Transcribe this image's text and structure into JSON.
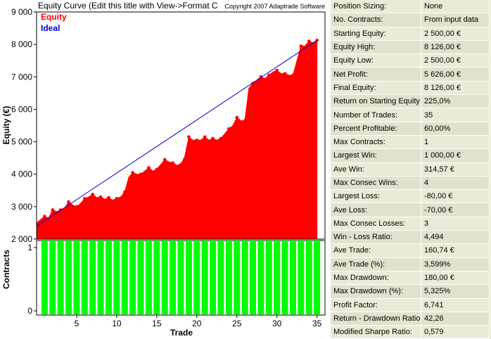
{
  "header": {
    "title": "Equity Curve (Edit this title with View->Format C",
    "copyright": "Copyright 2007 Adaptrade Software"
  },
  "colors": {
    "equity": "#ff0000",
    "ideal": "#0000cc",
    "contracts": "#00ff00"
  },
  "chart_data": [
    {
      "type": "area",
      "title": "Equity Curve (Edit this title with View->Format C",
      "ylabel": "Equity (€)",
      "xlabel": "",
      "xlim": [
        0,
        36
      ],
      "ylim": [
        2000,
        9000
      ],
      "yticks": [
        2000,
        3000,
        4000,
        5000,
        6000,
        7000,
        8000,
        9000
      ],
      "ytick_labels": [
        "2 000",
        "3 000",
        "4 000",
        "5 000",
        "6 000",
        "7 000",
        "8 000",
        "9 000"
      ],
      "legend": [
        "Equity",
        "Ideal"
      ],
      "legend_position": "top-left",
      "grid": false,
      "series": [
        {
          "name": "Equity",
          "x": [
            0,
            0.5,
            1,
            1.5,
            2,
            2.5,
            3,
            3.5,
            4,
            4.5,
            5,
            5.5,
            6,
            6.5,
            7,
            7.5,
            8,
            8.5,
            9,
            9.5,
            10,
            10.5,
            11,
            11.5,
            12,
            12.5,
            13,
            13.5,
            14,
            14.5,
            15,
            15.5,
            16,
            16.5,
            17,
            17.5,
            18,
            18.5,
            19,
            19.5,
            20,
            20.5,
            21,
            21.5,
            22,
            22.5,
            23,
            23.5,
            24,
            24.5,
            25,
            25.5,
            26,
            26.5,
            27,
            27.5,
            28,
            28.5,
            29,
            29.5,
            30,
            30.5,
            31,
            31.5,
            32,
            32.5,
            33,
            33.5,
            34,
            34.5,
            35
          ],
          "values": [
            2500,
            2600,
            2700,
            2650,
            2900,
            2850,
            2900,
            2950,
            3150,
            3050,
            3000,
            3100,
            3250,
            3300,
            3380,
            3280,
            3300,
            3230,
            3280,
            3200,
            3250,
            3300,
            3450,
            3900,
            4050,
            4000,
            4000,
            4100,
            4200,
            4100,
            4150,
            4300,
            4450,
            4380,
            4350,
            4280,
            4300,
            4550,
            5150,
            5050,
            5050,
            5050,
            5150,
            5050,
            5100,
            5050,
            5100,
            5250,
            5400,
            5500,
            5750,
            5650,
            5650,
            6650,
            6800,
            6900,
            7000,
            6950,
            7050,
            7150,
            7200,
            7100,
            7100,
            7050,
            7050,
            7500,
            7950,
            7950,
            8100,
            8050,
            8126
          ]
        },
        {
          "name": "Ideal",
          "x": [
            0,
            35
          ],
          "values": [
            2400,
            8126
          ]
        }
      ]
    },
    {
      "type": "bar",
      "ylabel": "Contracts",
      "xlabel": "Trade",
      "categories": [
        1,
        2,
        3,
        4,
        5,
        6,
        7,
        8,
        9,
        10,
        11,
        12,
        13,
        14,
        15,
        16,
        17,
        18,
        19,
        20,
        21,
        22,
        23,
        24,
        25,
        26,
        27,
        28,
        29,
        30,
        31,
        32,
        33,
        34,
        35
      ],
      "values": [
        1,
        1,
        1,
        1,
        1,
        1,
        1,
        1,
        1,
        1,
        1,
        1,
        1,
        1,
        1,
        1,
        1,
        1,
        1,
        1,
        1,
        1,
        1,
        1,
        1,
        1,
        1,
        1,
        1,
        1,
        1,
        1,
        1,
        1,
        1
      ],
      "ylim": [
        0,
        1
      ],
      "yticks": [
        0,
        1
      ],
      "xticks": [
        5,
        10,
        15,
        20,
        25,
        30,
        35
      ],
      "xlim": [
        0,
        36
      ]
    }
  ],
  "stats": [
    {
      "label": "Position Sizing:",
      "value": "None"
    },
    {
      "label": "No. Contracts:",
      "value": "From input data"
    },
    {
      "label": "Starting Equity:",
      "value": "2 500,00 €"
    },
    {
      "label": "Equity High:",
      "value": "8 126,00 €"
    },
    {
      "label": "Equity Low:",
      "value": "2 500,00 €"
    },
    {
      "label": "Net Profit:",
      "value": "5 626,00 €"
    },
    {
      "label": "Final Equity:",
      "value": "8 126,00 €"
    },
    {
      "label": "Return on Starting Equity:",
      "value": "225,0%"
    },
    {
      "label": "Number of Trades:",
      "value": "35"
    },
    {
      "label": "Percent Profitable:",
      "value": "60,00%"
    },
    {
      "label": "Max Contracts:",
      "value": "1"
    },
    {
      "label": "Largest Win:",
      "value": "1 000,00 €"
    },
    {
      "label": "Ave Win:",
      "value": "314,57 €"
    },
    {
      "label": "Max Consec Wins:",
      "value": "4"
    },
    {
      "label": "Largest Loss:",
      "value": "-80,00 €"
    },
    {
      "label": "Ave Loss:",
      "value": "-70,00 €"
    },
    {
      "label": "Max Consec Losses:",
      "value": "3"
    },
    {
      "label": "Win - Loss Ratio:",
      "value": "4,494"
    },
    {
      "label": "Ave Trade:",
      "value": "160,74 €"
    },
    {
      "label": "Ave Trade (%):",
      "value": "3,599%"
    },
    {
      "label": "Max Drawdown:",
      "value": "180,00 €"
    },
    {
      "label": "Max Drawdown (%):",
      "value": "5,325%"
    },
    {
      "label": "Profit Factor:",
      "value": "6,741"
    },
    {
      "label": "Return - Drawdown Ratio:",
      "value": "42,26"
    },
    {
      "label": "Modified Sharpe Ratio:",
      "value": "0,579"
    }
  ]
}
